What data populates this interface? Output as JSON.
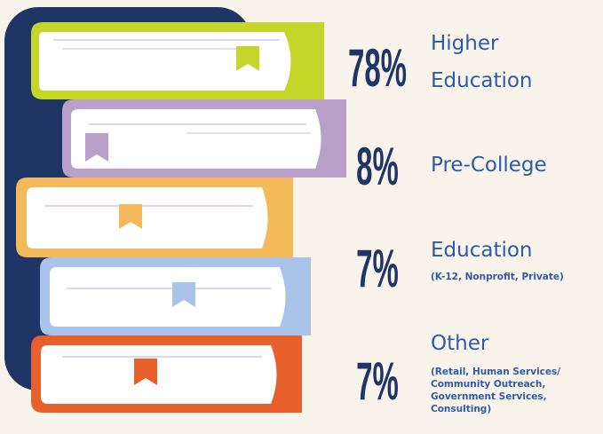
{
  "items": [
    {
      "percent": "78%",
      "title_lines": [
        "Higher",
        "Education"
      ],
      "detail_lines": []
    },
    {
      "percent": "8%",
      "title_lines": [
        "Pre-College"
      ],
      "detail_lines": []
    },
    {
      "percent": "7%",
      "title_lines": [
        "Education"
      ],
      "detail_lines": [
        "(K-12, Nonprofit, Private)"
      ]
    },
    {
      "percent": "7%",
      "title_lines": [
        "Other"
      ],
      "detail_lines": [
        "(Retail, Human Services/",
        "Community Outreach,",
        "Government Services,",
        "Consulting)"
      ]
    }
  ]
}
